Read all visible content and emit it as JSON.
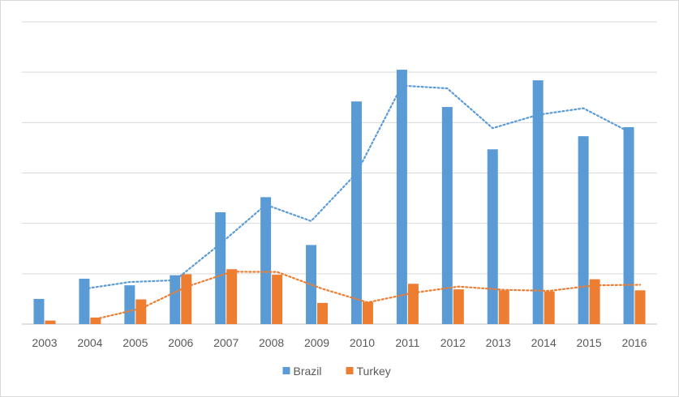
{
  "chart_data": {
    "type": "bar",
    "title": "",
    "xlabel": "",
    "ylabel": "",
    "ylim": [
      0,
      6
    ],
    "y_gridlines": 6,
    "y_tick_labels_shown": false,
    "grid": true,
    "legend": "bottom",
    "categories": [
      "2003",
      "2004",
      "2005",
      "2006",
      "2007",
      "2008",
      "2009",
      "2010",
      "2011",
      "2012",
      "2013",
      "2014",
      "2015",
      "2016"
    ],
    "series": [
      {
        "name": "Brazil",
        "color": "#5b9bd5",
        "values": [
          0.5,
          0.9,
          0.77,
          0.97,
          2.22,
          2.52,
          1.57,
          4.42,
          5.05,
          4.31,
          3.47,
          4.84,
          3.73,
          3.91
        ],
        "trendline": "2-period moving average (dotted)"
      },
      {
        "name": "Turkey",
        "color": "#ed7d31",
        "values": [
          0.07,
          0.13,
          0.49,
          0.99,
          1.09,
          0.98,
          0.42,
          0.44,
          0.8,
          0.69,
          0.67,
          0.65,
          0.89,
          0.67
        ],
        "trendline": "2-period moving average (dotted)"
      }
    ]
  }
}
